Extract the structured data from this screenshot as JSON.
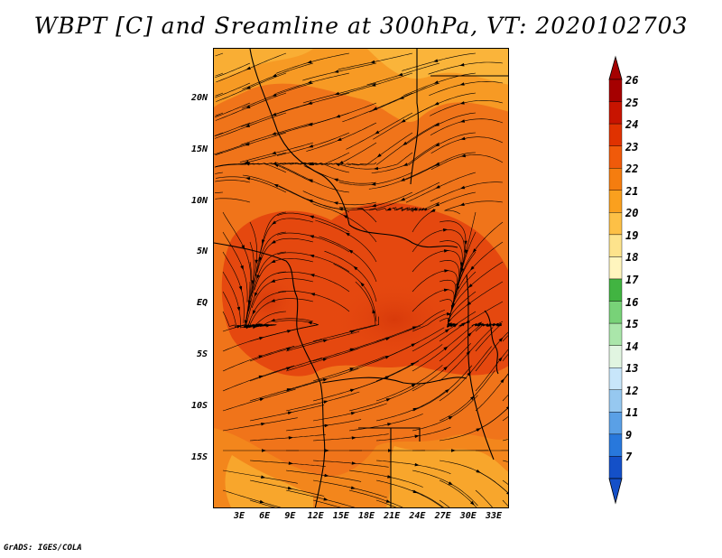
{
  "title": "WBPT [C] and Sreamline at 300hPa, VT: 2020102703",
  "credit": "GrADS: IGES/COLA",
  "map": {
    "lat_labels": [
      "20N",
      "15N",
      "10N",
      "5N",
      "EQ",
      "5S",
      "10S",
      "15S"
    ],
    "lon_labels": [
      "3E",
      "6E",
      "9E",
      "12E",
      "15E",
      "18E",
      "21E",
      "24E",
      "27E",
      "30E",
      "33E"
    ]
  },
  "colorbar": {
    "labels": [
      "26",
      "25",
      "24",
      "23",
      "22",
      "21",
      "20",
      "19",
      "18",
      "17",
      "16",
      "15",
      "14",
      "13",
      "12",
      "11",
      "9",
      "7"
    ],
    "colors": [
      "#a50000",
      "#c81400",
      "#e03200",
      "#f05a0a",
      "#f57d0f",
      "#faa01e",
      "#fdc046",
      "#fde38c",
      "#fff5be",
      "#41b441",
      "#78d278",
      "#aae6aa",
      "#e1f5e1",
      "#c8e6fa",
      "#96c8f0",
      "#5aa0e6",
      "#2878dc",
      "#1450c8"
    ]
  },
  "colors": {
    "field_warm": "#e84c12",
    "field_mid": "#f2781a",
    "field_cool": "#f7a22a",
    "field_pale": "#fbc24a",
    "streamline": "#000000"
  }
}
